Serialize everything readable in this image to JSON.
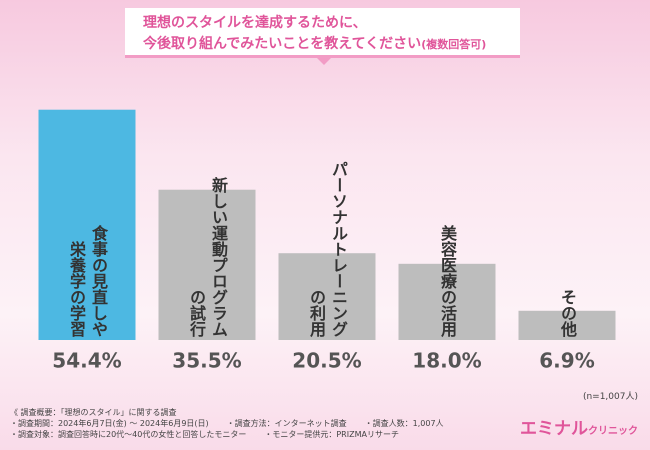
{
  "title": [
    "理想のスタイルを達成するために、",
    "今後取り組んでみたいことを教えてください"
  ],
  "subtitle": "(複数回答可)",
  "chart_data": {
    "type": "bar",
    "categories": [
      [
        "食事の見直しや",
        "栄養学の学習"
      ],
      [
        "新しい運動プログラム",
        "の試行"
      ],
      [
        "パーソナルトレーニング",
        "の利用"
      ],
      [
        "美容医療の活用"
      ],
      [
        "その他"
      ]
    ],
    "values": [
      54.4,
      35.5,
      20.5,
      18.0,
      6.9
    ],
    "value_labels": [
      "54.4%",
      "35.5%",
      "20.5%",
      "18.0%",
      "6.9%"
    ],
    "colors": [
      "#4db8e2",
      "#bdbdbd",
      "#bdbdbd",
      "#bdbdbd",
      "#bdbdbd"
    ],
    "ylim": [
      0,
      60
    ]
  },
  "sample_note": "(n=1,007人)",
  "notes": {
    "heading": "《 調査概要：「理想のスタイル」に関する調査",
    "rows": [
      [
        "調査期間：2024年6月7日(金) ～ 2024年6月9日(日)",
        "調査方法：インターネット調査",
        "調査人数：1,007人"
      ],
      [
        "調査対象：調査回答時に20代～40代の女性と回答したモニター",
        "モニター提供元：PRIZMAリサーチ"
      ]
    ]
  },
  "logo": [
    "エミナル",
    "クリニック"
  ]
}
